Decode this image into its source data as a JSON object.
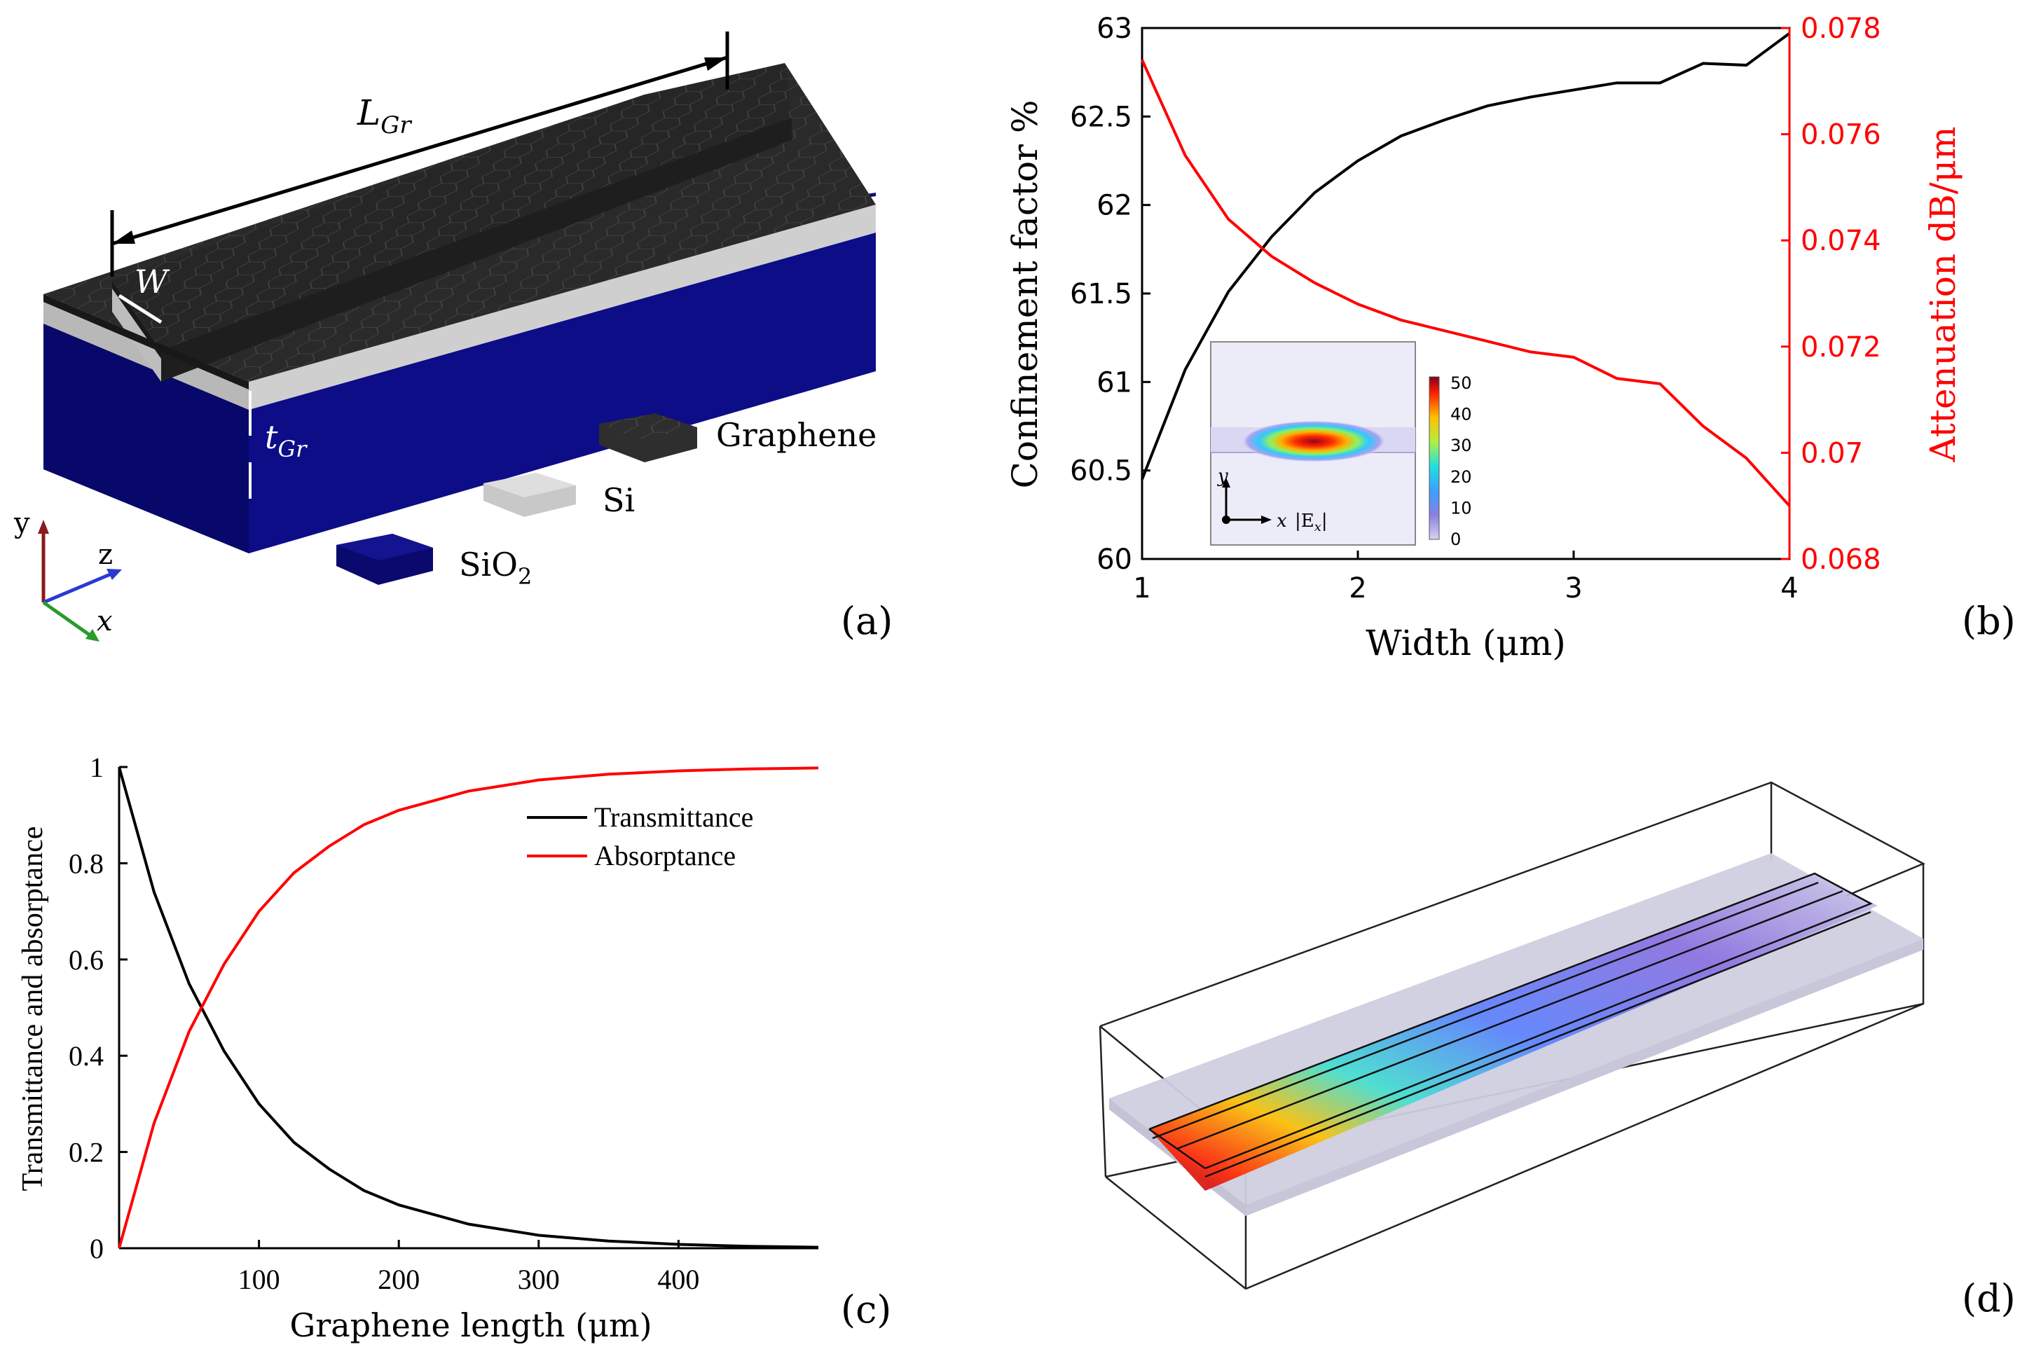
{
  "panels": {
    "a": {
      "label": "(a)",
      "dim_length": "L",
      "dim_length_sub": "Gr",
      "dim_width": "W",
      "dim_thickness": "t",
      "dim_thickness_sub": "Gr",
      "legend": [
        {
          "name": "Graphene",
          "color": "#2b2b2b"
        },
        {
          "name": "Si",
          "color": "#c8c8c8"
        },
        {
          "name": "SiO",
          "sub": "2",
          "color": "#0a0a6e"
        }
      ],
      "axes": {
        "y": "y",
        "z": "z",
        "x": "x"
      },
      "colors": {
        "graphene": "#2a2a2a",
        "silicon": "#bdbdbd",
        "oxide": "#0b0b78"
      }
    },
    "b": {
      "label": "(b)"
    },
    "c": {
      "label": "(c)"
    },
    "d": {
      "label": "(d)"
    }
  },
  "chart_data": [
    {
      "id": "b",
      "type": "line",
      "xlabel": "Width (μm)",
      "x_ticks": [
        1,
        2,
        3,
        4
      ],
      "xlim": [
        1,
        4
      ],
      "ylabel_left": "Confinement factor %",
      "ylim_left": [
        60,
        63
      ],
      "y_ticks_left": [
        "60",
        "60.5",
        "61",
        "61.5",
        "62",
        "62.5",
        "63"
      ],
      "ylabel_right": "Attenuation dB/μm",
      "ylim_right": [
        0.068,
        0.078
      ],
      "y_ticks_right": [
        "0.068",
        "0.07",
        "0.072",
        "0.074",
        "0.076",
        "0.078"
      ],
      "series": [
        {
          "name": "Confinement factor",
          "axis": "left",
          "color": "#000000",
          "x": [
            1.0,
            1.2,
            1.4,
            1.6,
            1.8,
            2.0,
            2.2,
            2.4,
            2.6,
            2.8,
            3.0,
            3.2,
            3.4,
            3.6,
            3.8,
            4.0
          ],
          "y": [
            60.45,
            61.07,
            61.51,
            61.82,
            62.07,
            62.25,
            62.39,
            62.48,
            62.56,
            62.61,
            62.65,
            62.69,
            62.69,
            62.8,
            62.79,
            62.97
          ]
        },
        {
          "name": "Attenuation",
          "axis": "right",
          "color": "#ff0000",
          "x": [
            1.0,
            1.2,
            1.4,
            1.6,
            1.8,
            2.0,
            2.2,
            2.4,
            2.6,
            2.8,
            3.0,
            3.2,
            3.4,
            3.6,
            3.8,
            4.0
          ],
          "y": [
            0.0774,
            0.0756,
            0.0744,
            0.0737,
            0.0732,
            0.0728,
            0.0725,
            0.0723,
            0.0721,
            0.0719,
            0.0718,
            0.0714,
            0.0713,
            0.0705,
            0.0699,
            0.069
          ]
        }
      ],
      "inset": {
        "colorbar_ticks": [
          "0",
          "10",
          "20",
          "30",
          "40",
          "50"
        ],
        "colorbar_range": [
          0,
          52
        ],
        "axis_y": "y",
        "axis_x": "x",
        "field_label": "|E",
        "field_sub": "x",
        "field_end": "|"
      }
    },
    {
      "id": "c",
      "type": "line",
      "xlabel": "Graphene length (μm)",
      "x_ticks": [
        100,
        200,
        300,
        400
      ],
      "xlim": [
        0,
        500
      ],
      "ylabel": "Transmittance and absorptance",
      "ylim": [
        0,
        1
      ],
      "y_ticks": [
        "0",
        "0.2",
        "0.4",
        "0.6",
        "0.8",
        "1"
      ],
      "series": [
        {
          "name": "Transmittance",
          "color": "#000000",
          "x": [
            0,
            25,
            50,
            75,
            100,
            125,
            150,
            175,
            200,
            250,
            300,
            350,
            400,
            450,
            500
          ],
          "y": [
            1.0,
            0.74,
            0.55,
            0.41,
            0.3,
            0.22,
            0.165,
            0.12,
            0.09,
            0.05,
            0.027,
            0.015,
            0.008,
            0.004,
            0.002
          ]
        },
        {
          "name": "Absorptance",
          "color": "#ff0000",
          "x": [
            0,
            25,
            50,
            75,
            100,
            125,
            150,
            175,
            200,
            250,
            300,
            350,
            400,
            450,
            500
          ],
          "y": [
            0.0,
            0.26,
            0.45,
            0.59,
            0.7,
            0.78,
            0.835,
            0.88,
            0.91,
            0.95,
            0.973,
            0.985,
            0.992,
            0.996,
            0.998
          ]
        }
      ],
      "legend_position": "top-right"
    }
  ]
}
